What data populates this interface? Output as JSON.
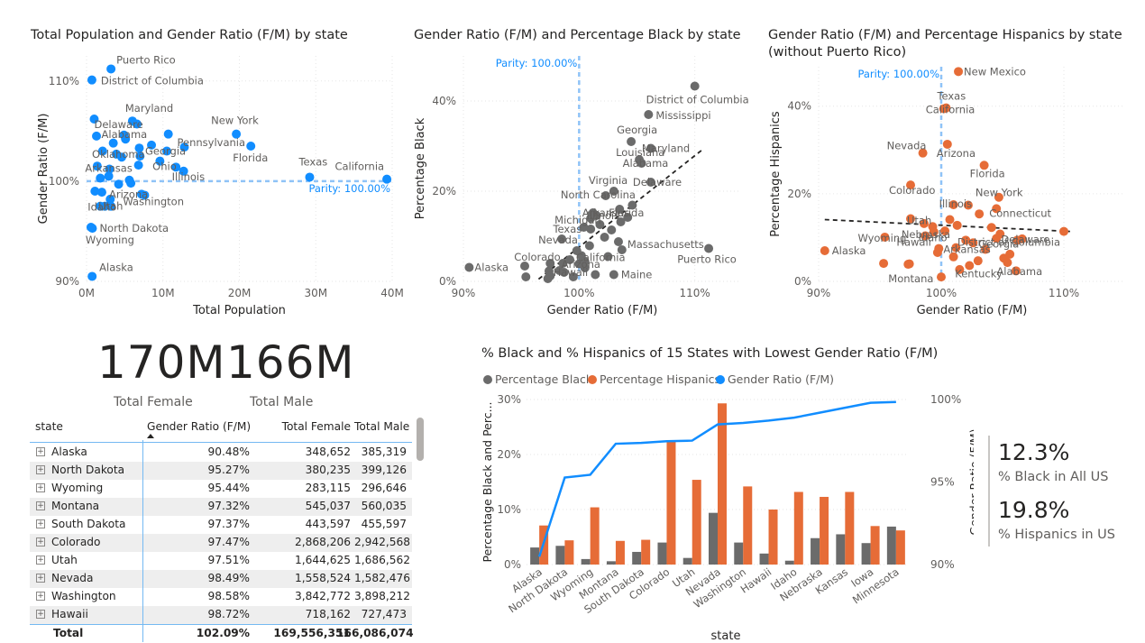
{
  "charts": {
    "pop": {
      "title": "Total Population and Gender Ratio (F/M) by state"
    },
    "black": {
      "title": "Gender Ratio (F/M) and Percentage Black by state"
    },
    "hisp": {
      "title_line1": "Gender Ratio (F/M) and Percentage Hispanics by state",
      "title_line2": "(without Puerto Rico)"
    },
    "bottom": {
      "title": "% Black and % Hispanics of 15 States with Lowest Gender Ratio (F/M)"
    }
  },
  "kpis": {
    "total_female_value": "170M",
    "total_female_label": "Total Female",
    "total_male_value": "166M",
    "total_male_label": "Total Male"
  },
  "side_kpis": {
    "black_value": "12.3%",
    "black_label": "% Black in All US",
    "hisp_value": "19.8%",
    "hisp_label": "% Hispanics in US"
  },
  "table": {
    "headers": [
      "state",
      "Gender Ratio (F/M)",
      "Total Female",
      "Total Male"
    ],
    "rows": [
      [
        "Alaska",
        "90.48%",
        "348,652",
        "385,319"
      ],
      [
        "North Dakota",
        "95.27%",
        "380,235",
        "399,126"
      ],
      [
        "Wyoming",
        "95.44%",
        "283,115",
        "296,646"
      ],
      [
        "Montana",
        "97.32%",
        "545,037",
        "560,035"
      ],
      [
        "South Dakota",
        "97.37%",
        "443,597",
        "455,597"
      ],
      [
        "Colorado",
        "97.47%",
        "2,868,206",
        "2,942,568"
      ],
      [
        "Utah",
        "97.51%",
        "1,644,625",
        "1,686,562"
      ],
      [
        "Nevada",
        "98.49%",
        "1,558,524",
        "1,582,476"
      ],
      [
        "Washington",
        "98.58%",
        "3,842,772",
        "3,898,212"
      ],
      [
        "Hawaii",
        "98.72%",
        "718,162",
        "727,473"
      ]
    ],
    "total": [
      "Total",
      "102.09%",
      "169,556,351",
      "166,086,074"
    ],
    "expand_icon": "plus-box-icon",
    "sort_icon": "sort-ascending-icon"
  },
  "colors": {
    "blue": "#118dff",
    "grey": "#6b6b6b",
    "orange": "#e66c37",
    "parity": "#8fc3f7"
  },
  "chart_data": [
    {
      "type": "scatter",
      "title": "Total Population and Gender Ratio (F/M) by state",
      "xlabel": "Total Population",
      "ylabel": "Gender Ratio (F/M)",
      "xlim": [
        0,
        40000000
      ],
      "ylim": [
        90,
        112.5
      ],
      "xticks": [
        "0M",
        "10M",
        "20M",
        "30M",
        "40M"
      ],
      "xtick_values": [
        0,
        10000000,
        20000000,
        30000000,
        40000000
      ],
      "yticks": [
        "90%",
        "100%",
        "110%"
      ],
      "ytick_values": [
        90,
        100,
        110
      ],
      "reference_line": {
        "label": "Parity: 100.00%",
        "value": 100,
        "axis": "y"
      },
      "labeled_points": [
        {
          "label": "Puerto Rico",
          "x": 3200000,
          "y": 111.2
        },
        {
          "label": "District of Columbia",
          "x": 700000,
          "y": 110.1
        },
        {
          "label": "Maryland",
          "x": 6000000,
          "y": 106.0
        },
        {
          "label": "Delaware",
          "x": 1000000,
          "y": 106.2
        },
        {
          "label": "Alabama",
          "x": 4900000,
          "y": 104.6
        },
        {
          "label": "Oklahoma",
          "x": 3900000,
          "y": 102.7
        },
        {
          "label": "Georgia",
          "x": 10500000,
          "y": 103.0
        },
        {
          "label": "Arkansas",
          "x": 3000000,
          "y": 101.2
        },
        {
          "label": "Ohio",
          "x": 11700000,
          "y": 101.4
        },
        {
          "label": "Illinois",
          "x": 12700000,
          "y": 101.0
        },
        {
          "label": "Utah",
          "x": 3200000,
          "y": 97.5
        },
        {
          "label": "Arizona",
          "x": 7200000,
          "y": 98.7
        },
        {
          "label": "Idaho",
          "x": 1800000,
          "y": 97.5
        },
        {
          "label": "Washington",
          "x": 7600000,
          "y": 98.6
        },
        {
          "label": "North Dakota",
          "x": 760000,
          "y": 95.3
        },
        {
          "label": "Wyoming",
          "x": 580000,
          "y": 95.4
        },
        {
          "label": "Alaska",
          "x": 730000,
          "y": 90.5
        },
        {
          "label": "New York",
          "x": 19600000,
          "y": 104.7
        },
        {
          "label": "Pennsylvania",
          "x": 12800000,
          "y": 103.4
        },
        {
          "label": "Florida",
          "x": 21500000,
          "y": 103.5
        },
        {
          "label": "Texas",
          "x": 29200000,
          "y": 100.4
        },
        {
          "label": "California",
          "x": 39300000,
          "y": 100.2
        }
      ],
      "unlabeled_points": [
        {
          "x": 1300000,
          "y": 104.5
        },
        {
          "x": 2100000,
          "y": 103.0
        },
        {
          "x": 3500000,
          "y": 103.8
        },
        {
          "x": 4600000,
          "y": 102.4
        },
        {
          "x": 5100000,
          "y": 104.2
        },
        {
          "x": 6900000,
          "y": 103.3
        },
        {
          "x": 8500000,
          "y": 103.6
        },
        {
          "x": 10700000,
          "y": 104.7
        },
        {
          "x": 9600000,
          "y": 102.0
        },
        {
          "x": 6800000,
          "y": 101.6
        },
        {
          "x": 5800000,
          "y": 99.8
        },
        {
          "x": 4200000,
          "y": 99.7
        },
        {
          "x": 2900000,
          "y": 100.5
        },
        {
          "x": 1800000,
          "y": 100.3
        },
        {
          "x": 1400000,
          "y": 101.5
        },
        {
          "x": 2000000,
          "y": 98.9
        },
        {
          "x": 3100000,
          "y": 98.2
        },
        {
          "x": 5600000,
          "y": 100.1
        },
        {
          "x": 2400000,
          "y": 97.5
        },
        {
          "x": 1100000,
          "y": 99.0
        },
        {
          "x": 7000000,
          "y": 102.5
        },
        {
          "x": 6600000,
          "y": 105.7
        }
      ]
    },
    {
      "type": "scatter",
      "title": "Gender Ratio (F/M) and Percentage Black by state",
      "xlabel": "Gender Ratio (F/M)",
      "ylabel": "Percentage Black",
      "xlim": [
        90,
        114
      ],
      "ylim": [
        0,
        50
      ],
      "xticks": [
        "90%",
        "100%",
        "110%"
      ],
      "xtick_values": [
        90,
        100,
        110
      ],
      "yticks": [
        "0%",
        "20%",
        "40%"
      ],
      "ytick_values": [
        0,
        20,
        40
      ],
      "reference_line": {
        "label": "Parity: 100.00%",
        "value": 100,
        "axis": "x"
      },
      "trend_line": [
        [
          96.5,
          0.5
        ],
        [
          110.8,
          29.5
        ]
      ],
      "labeled_points": [
        {
          "label": "District of Columbia",
          "x": 110.0,
          "y": 43.3
        },
        {
          "label": "Mississippi",
          "x": 106.0,
          "y": 37.0
        },
        {
          "label": "Georgia",
          "x": 104.5,
          "y": 31.0
        },
        {
          "label": "Maryland",
          "x": 106.2,
          "y": 29.5
        },
        {
          "label": "Louisiana",
          "x": 105.2,
          "y": 27.0
        },
        {
          "label": "Virginia",
          "x": 103.0,
          "y": 20.0
        },
        {
          "label": "Alabama",
          "x": 105.4,
          "y": 26.2
        },
        {
          "label": "North Carolina",
          "x": 102.3,
          "y": 19.0
        },
        {
          "label": "Delaware",
          "x": 106.2,
          "y": 22.0
        },
        {
          "label": "Michigan",
          "x": 101.0,
          "y": 14.0
        },
        {
          "label": "Illinois",
          "x": 101.5,
          "y": 14.6
        },
        {
          "label": "Florida",
          "x": 103.5,
          "y": 16.0
        },
        {
          "label": "Texas",
          "x": 100.4,
          "y": 12.0
        },
        {
          "label": "Arkansas",
          "x": 101.2,
          "y": 15.2
        },
        {
          "label": "Massachusetts",
          "x": 103.7,
          "y": 7.0
        },
        {
          "label": "Colorado",
          "x": 97.5,
          "y": 4.0
        },
        {
          "label": "Nevada",
          "x": 98.5,
          "y": 9.4
        },
        {
          "label": "California",
          "x": 100.2,
          "y": 5.7
        },
        {
          "label": "Alaska",
          "x": 90.5,
          "y": 3.1
        },
        {
          "label": "Hawaii",
          "x": 98.7,
          "y": 2.0
        },
        {
          "label": "Arizona",
          "x": 100.5,
          "y": 4.4
        },
        {
          "label": "Maine",
          "x": 103.0,
          "y": 1.5
        },
        {
          "label": "Puerto Rico",
          "x": 111.2,
          "y": 7.3
        }
      ],
      "unlabeled_points": [
        {
          "x": 95.3,
          "y": 3.4
        },
        {
          "x": 95.4,
          "y": 1.0
        },
        {
          "x": 97.3,
          "y": 0.6
        },
        {
          "x": 97.4,
          "y": 2.3
        },
        {
          "x": 97.5,
          "y": 1.2
        },
        {
          "x": 98.6,
          "y": 4.0
        },
        {
          "x": 99.5,
          "y": 1.0
        },
        {
          "x": 99.8,
          "y": 6.8
        },
        {
          "x": 100.9,
          "y": 7.9
        },
        {
          "x": 101.4,
          "y": 1.5
        },
        {
          "x": 101.8,
          "y": 12.6
        },
        {
          "x": 102.2,
          "y": 9.8
        },
        {
          "x": 102.8,
          "y": 11.4
        },
        {
          "x": 103.4,
          "y": 8.8
        },
        {
          "x": 104.2,
          "y": 14.2
        },
        {
          "x": 100.5,
          "y": 3.0
        },
        {
          "x": 99.2,
          "y": 4.8
        },
        {
          "x": 102.5,
          "y": 5.5
        },
        {
          "x": 98.3,
          "y": 2.4
        },
        {
          "x": 101.0,
          "y": 11.6
        },
        {
          "x": 103.6,
          "y": 13.2
        },
        {
          "x": 104.6,
          "y": 16.9
        },
        {
          "x": 100.0,
          "y": 3.9
        }
      ]
    },
    {
      "type": "scatter",
      "title": "Gender Ratio (F/M) and Percentage Hispanics by state (without Puerto Rico)",
      "xlabel": "Gender Ratio (F/M)",
      "ylabel": "Percentage Hispanics",
      "xlim": [
        90,
        115
      ],
      "ylim": [
        0,
        49
      ],
      "xticks": [
        "90%",
        "100%",
        "110%"
      ],
      "xtick_values": [
        90,
        100,
        110
      ],
      "yticks": [
        "0%",
        "20%",
        "40%"
      ],
      "ytick_values": [
        0,
        20,
        40
      ],
      "reference_line": {
        "label": "Parity: 100.00%",
        "value": 100,
        "axis": "x"
      },
      "trend_line": [
        [
          90.5,
          14.1
        ],
        [
          110.5,
          11.4
        ]
      ],
      "labeled_points": [
        {
          "label": "New Mexico",
          "x": 101.4,
          "y": 47.9
        },
        {
          "label": "Texas",
          "x": 100.4,
          "y": 39.6
        },
        {
          "label": "California",
          "x": 100.2,
          "y": 39.4
        },
        {
          "label": "Nevada",
          "x": 98.5,
          "y": 29.3
        },
        {
          "label": "Arizona",
          "x": 100.5,
          "y": 31.3
        },
        {
          "label": "Florida",
          "x": 103.5,
          "y": 26.5
        },
        {
          "label": "New York",
          "x": 104.7,
          "y": 19.2
        },
        {
          "label": "Colorado",
          "x": 97.5,
          "y": 22.0
        },
        {
          "label": "Connecticut",
          "x": 104.5,
          "y": 16.6
        },
        {
          "label": "Illinois",
          "x": 101.0,
          "y": 17.5
        },
        {
          "label": "Utah",
          "x": 97.5,
          "y": 14.3
        },
        {
          "label": "Nebraska",
          "x": 99.4,
          "y": 11.3
        },
        {
          "label": "Delaware",
          "x": 106.2,
          "y": 9.4
        },
        {
          "label": "Arkansas",
          "x": 101.2,
          "y": 7.7
        },
        {
          "label": "Idaho",
          "x": 99.3,
          "y": 12.5
        },
        {
          "label": "Georgia",
          "x": 104.5,
          "y": 9.8
        },
        {
          "label": "Alaska",
          "x": 90.5,
          "y": 7.0
        },
        {
          "label": "Wyoming",
          "x": 95.4,
          "y": 10.1
        },
        {
          "label": "Hawaii",
          "x": 98.7,
          "y": 10.4
        },
        {
          "label": "District of Columbia",
          "x": 110.0,
          "y": 11.4
        },
        {
          "label": "Montana",
          "x": 97.3,
          "y": 3.9
        },
        {
          "label": "Kentucky",
          "x": 102.3,
          "y": 3.6
        },
        {
          "label": "Alabama",
          "x": 105.4,
          "y": 4.3
        }
      ],
      "unlabeled_points": [
        {
          "x": 95.3,
          "y": 4.1
        },
        {
          "x": 97.4,
          "y": 4.0
        },
        {
          "x": 98.6,
          "y": 13.2
        },
        {
          "x": 99.8,
          "y": 7.5
        },
        {
          "x": 100.3,
          "y": 11.5
        },
        {
          "x": 101.0,
          "y": 5.6
        },
        {
          "x": 101.5,
          "y": 2.7
        },
        {
          "x": 102.0,
          "y": 9.4
        },
        {
          "x": 102.6,
          "y": 8.8
        },
        {
          "x": 103.0,
          "y": 4.7
        },
        {
          "x": 103.6,
          "y": 7.3
        },
        {
          "x": 104.1,
          "y": 12.3
        },
        {
          "x": 104.8,
          "y": 10.8
        },
        {
          "x": 105.6,
          "y": 6.2
        },
        {
          "x": 106.1,
          "y": 2.4
        },
        {
          "x": 102.2,
          "y": 17.4
        },
        {
          "x": 101.3,
          "y": 12.8
        },
        {
          "x": 100.7,
          "y": 14.1
        },
        {
          "x": 103.1,
          "y": 15.4
        },
        {
          "x": 105.1,
          "y": 5.3
        },
        {
          "x": 106.6,
          "y": 9.7
        },
        {
          "x": 100.0,
          "y": 1.0
        },
        {
          "x": 99.7,
          "y": 6.6
        }
      ]
    },
    {
      "type": "bar",
      "title": "% Black and % Hispanics of 15 States with Lowest Gender Ratio (F/M)",
      "xlabel": "state",
      "ylabel": "Percentage Black and Perc...",
      "y2label": "Gender Ratio (F/M)",
      "categories": [
        "Alaska",
        "North Dakota",
        "Wyoming",
        "Montana",
        "South Dakota",
        "Colorado",
        "Utah",
        "Nevada",
        "Washington",
        "Hawaii",
        "Idaho",
        "Nebraska",
        "Kansas",
        "Iowa",
        "Minnesota"
      ],
      "ylim": [
        0,
        30
      ],
      "yticks": [
        "0%",
        "10%",
        "20%",
        "30%"
      ],
      "ytick_values": [
        0,
        10,
        20,
        30
      ],
      "y2lim": [
        90,
        100
      ],
      "y2ticks": [
        "90%",
        "95%",
        "100%"
      ],
      "y2tick_values": [
        90,
        95,
        100
      ],
      "legend_position": "top-left",
      "series": [
        {
          "name": "Percentage Black",
          "type": "bar",
          "values": [
            3.1,
            3.4,
            1.0,
            0.6,
            2.3,
            4.0,
            1.2,
            9.4,
            4.0,
            2.0,
            0.7,
            4.8,
            5.5,
            3.9,
            6.9
          ]
        },
        {
          "name": "Percentage Hispanics",
          "type": "bar",
          "values": [
            7.1,
            4.4,
            10.4,
            4.3,
            4.5,
            22.3,
            15.4,
            29.3,
            14.2,
            10.0,
            13.2,
            12.3,
            13.2,
            7.0,
            6.2
          ]
        },
        {
          "name": "Gender Ratio (F/M)",
          "type": "line",
          "axis": "right",
          "values": [
            90.48,
            95.27,
            95.44,
            97.32,
            97.37,
            97.47,
            97.51,
            98.49,
            98.58,
            98.72,
            98.9,
            99.2,
            99.5,
            99.8,
            99.85
          ]
        }
      ]
    }
  ]
}
